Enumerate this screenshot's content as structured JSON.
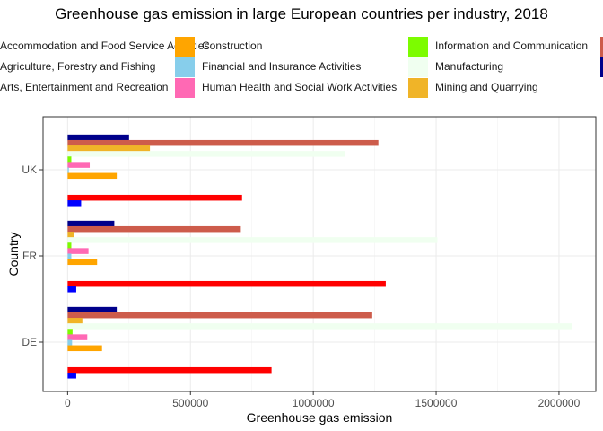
{
  "chart_data": {
    "type": "bar",
    "orientation": "horizontal",
    "title": "Greenhouse gas emission in large European countries per industry, 2018",
    "xlabel": "Greenhouse gas emission",
    "ylabel": "Country",
    "xlim": [
      -100000,
      2150000
    ],
    "xticks": [
      0,
      500000,
      1000000,
      1500000,
      2000000
    ],
    "xtick_labels": [
      "0",
      "500000",
      "1000000",
      "1500000",
      "2000000"
    ],
    "categories": [
      "UK",
      "FR",
      "DE"
    ],
    "grid": true,
    "legend_position": "top",
    "series": [
      {
        "name": "Accommodation and Food Service Activities",
        "color": "#cd5c4b",
        "values": [
          0,
          0,
          0
        ],
        "legend": true
      },
      {
        "name": "Agriculture, Forestry and Fishing",
        "color": "#000000",
        "values": [
          0,
          0,
          0
        ],
        "legend": true
      },
      {
        "name": "Arts, Entertainment and Recreation",
        "color": "#000000",
        "values": [
          0,
          0,
          0
        ],
        "legend": true
      },
      {
        "name": "Construction",
        "color": "#ffa500",
        "values": [
          200000,
          120000,
          140000
        ],
        "legend": true
      },
      {
        "name": "Financial and Insurance Activities",
        "color": "#87ceeb",
        "values": [
          5000,
          15000,
          18000
        ],
        "legend": true
      },
      {
        "name": "Human Health and Social Work Activities",
        "color": "#ff69b4",
        "values": [
          90000,
          85000,
          80000
        ],
        "legend": true
      },
      {
        "name": "Information and Communication",
        "color": "#7cfc00",
        "values": [
          15000,
          15000,
          20000
        ],
        "legend": true
      },
      {
        "name": "Manufacturing",
        "color": "#f0fff0",
        "values": [
          1130000,
          1505000,
          2055000
        ],
        "legend": true
      },
      {
        "name": "Mining and Quarrying",
        "color": "#f0b428",
        "values": [
          335000,
          25000,
          60000
        ],
        "legend": true
      },
      {
        "name": "",
        "color": "#cd5c4b",
        "values": [
          1265000,
          705000,
          1240000
        ],
        "legend": false
      },
      {
        "name": "",
        "color": "#00008b",
        "values": [
          250000,
          190000,
          200000
        ],
        "legend": false
      },
      {
        "name": "",
        "color": "#ff0000",
        "values": [
          710000,
          1295000,
          830000
        ],
        "legend": false
      },
      {
        "name": "",
        "color": "#0000ff",
        "values": [
          55000,
          35000,
          35000
        ],
        "legend": false
      }
    ],
    "bar_stack_order_top_to_bottom": [
      10,
      9,
      8,
      7,
      6,
      5,
      4,
      3,
      2,
      1,
      0,
      11,
      12
    ]
  }
}
